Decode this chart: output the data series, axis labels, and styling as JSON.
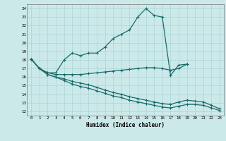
{
  "xlabel": "Humidex (Indice chaleur)",
  "bg_color": "#cce9e9",
  "grid_color": "#aad4d4",
  "line_color": "#1a6b6b",
  "xlim": [
    -0.5,
    23.5
  ],
  "ylim": [
    11.5,
    24.5
  ],
  "yticks": [
    12,
    13,
    14,
    15,
    16,
    17,
    18,
    19,
    20,
    21,
    22,
    23,
    24
  ],
  "xticks": [
    0,
    1,
    2,
    3,
    4,
    5,
    6,
    7,
    8,
    9,
    10,
    11,
    12,
    13,
    14,
    15,
    16,
    17,
    18,
    19,
    20,
    21,
    22,
    23
  ],
  "series": [
    {
      "x": [
        0,
        1,
        2,
        3,
        4,
        5,
        6,
        7,
        8,
        9,
        10,
        11,
        12,
        13,
        14,
        15,
        16,
        17,
        18,
        19
      ],
      "y": [
        18.1,
        17.0,
        16.5,
        16.5,
        18.0,
        18.8,
        18.5,
        18.8,
        18.8,
        19.5,
        20.5,
        21.0,
        21.5,
        23.0,
        24.0,
        23.2,
        23.0,
        16.2,
        17.4,
        17.5
      ]
    },
    {
      "x": [
        0,
        1,
        2,
        3,
        4,
        5,
        6,
        7,
        8,
        9,
        10,
        11,
        12,
        13,
        14,
        15,
        16,
        17,
        18,
        19
      ],
      "y": [
        18.1,
        17.0,
        16.5,
        16.3,
        16.3,
        16.3,
        16.3,
        16.4,
        16.5,
        16.6,
        16.7,
        16.8,
        16.9,
        17.0,
        17.1,
        17.1,
        17.0,
        16.8,
        17.0,
        17.5
      ]
    },
    {
      "x": [
        0,
        1,
        2,
        3,
        4,
        5,
        6,
        7,
        8,
        9,
        10,
        11,
        12,
        13,
        14,
        15,
        16,
        17,
        18,
        19,
        20,
        21,
        22,
        23
      ],
      "y": [
        18.1,
        17.0,
        16.3,
        16.0,
        15.8,
        15.5,
        15.3,
        15.1,
        14.8,
        14.5,
        14.2,
        14.0,
        13.7,
        13.5,
        13.3,
        13.1,
        12.9,
        12.8,
        13.1,
        13.3,
        13.2,
        13.1,
        12.7,
        12.3
      ]
    },
    {
      "x": [
        0,
        1,
        2,
        3,
        4,
        5,
        6,
        7,
        8,
        9,
        10,
        11,
        12,
        13,
        14,
        15,
        16,
        17,
        18,
        19,
        20,
        21,
        22,
        23
      ],
      "y": [
        18.1,
        17.0,
        16.3,
        16.0,
        15.6,
        15.2,
        14.9,
        14.7,
        14.4,
        14.1,
        13.8,
        13.6,
        13.3,
        13.1,
        12.9,
        12.7,
        12.5,
        12.4,
        12.6,
        12.8,
        12.8,
        12.7,
        12.4,
        12.1
      ]
    }
  ]
}
